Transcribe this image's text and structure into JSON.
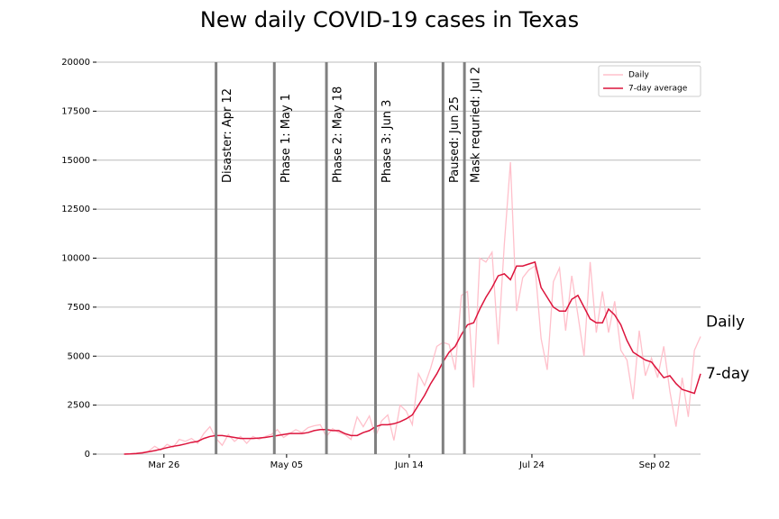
{
  "chart_data": {
    "type": "line",
    "title": "New daily COVID-19 cases in Texas",
    "x": [
      "Mar 13",
      "Mar 15",
      "Mar 17",
      "Mar 19",
      "Mar 21",
      "Mar 23",
      "Mar 25",
      "Mar 27",
      "Mar 29",
      "Mar 31",
      "Apr 02",
      "Apr 04",
      "Apr 06",
      "Apr 08",
      "Apr 10",
      "Apr 12",
      "Apr 14",
      "Apr 16",
      "Apr 18",
      "Apr 20",
      "Apr 22",
      "Apr 24",
      "Apr 26",
      "Apr 28",
      "Apr 30",
      "May 02",
      "May 04",
      "May 06",
      "May 08",
      "May 10",
      "May 12",
      "May 14",
      "May 16",
      "May 18",
      "May 20",
      "May 22",
      "May 24",
      "May 26",
      "May 28",
      "May 30",
      "Jun 01",
      "Jun 03",
      "Jun 05",
      "Jun 07",
      "Jun 09",
      "Jun 11",
      "Jun 13",
      "Jun 15",
      "Jun 17",
      "Jun 19",
      "Jun 21",
      "Jun 23",
      "Jun 25",
      "Jun 27",
      "Jun 29",
      "Jul 01",
      "Jul 03",
      "Jul 05",
      "Jul 07",
      "Jul 09",
      "Jul 11",
      "Jul 13",
      "Jul 15",
      "Jul 17",
      "Jul 19",
      "Jul 21",
      "Jul 23",
      "Jul 25",
      "Jul 27",
      "Jul 29",
      "Jul 31",
      "Aug 02",
      "Aug 04",
      "Aug 06",
      "Aug 08",
      "Aug 10",
      "Aug 12",
      "Aug 14",
      "Aug 16",
      "Aug 18",
      "Aug 20",
      "Aug 22",
      "Aug 24",
      "Aug 26",
      "Aug 28",
      "Aug 30",
      "Sep 01",
      "Sep 03",
      "Sep 05",
      "Sep 07",
      "Sep 09",
      "Sep 11",
      "Sep 13",
      "Sep 15",
      "Sep 17"
    ],
    "series": [
      {
        "name": "Daily",
        "end_label": "Daily",
        "color": "#ffc0cb",
        "values": [
          0,
          20,
          50,
          100,
          150,
          400,
          200,
          500,
          350,
          750,
          650,
          800,
          550,
          1050,
          1400,
          800,
          450,
          1000,
          650,
          900,
          550,
          900,
          750,
          900,
          1000,
          1250,
          850,
          1050,
          1250,
          1100,
          1350,
          1450,
          1500,
          900,
          1300,
          1100,
          1000,
          750,
          1900,
          1400,
          1950,
          900,
          1700,
          2000,
          700,
          2500,
          2200,
          1500,
          4100,
          3500,
          4400,
          5500,
          5700,
          5600,
          4300,
          8100,
          8300,
          3400,
          10000,
          9800,
          10300,
          5600,
          10700,
          14900,
          7300,
          9000,
          9400,
          9600,
          5900,
          4300,
          8800,
          9500,
          6300,
          9100,
          7100,
          5000,
          9800,
          6200,
          8300,
          6200,
          7800,
          5300,
          4800,
          2800,
          6300,
          4000,
          4900,
          3900,
          5500,
          3200,
          1400,
          3900,
          1900,
          5300,
          6000
        ]
      },
      {
        "name": "7-day average",
        "end_label": "7-day",
        "color": "#dc143c",
        "values": [
          0,
          10,
          30,
          60,
          120,
          180,
          250,
          330,
          400,
          450,
          520,
          600,
          650,
          800,
          900,
          950,
          950,
          900,
          850,
          800,
          800,
          800,
          820,
          850,
          900,
          950,
          1000,
          1050,
          1050,
          1050,
          1100,
          1200,
          1250,
          1250,
          1200,
          1200,
          1050,
          950,
          950,
          1100,
          1200,
          1400,
          1500,
          1500,
          1550,
          1650,
          1800,
          2000,
          2500,
          3000,
          3600,
          4100,
          4700,
          5200,
          5500,
          6100,
          6600,
          6700,
          7400,
          8000,
          8500,
          9100,
          9200,
          8900,
          9600,
          9600,
          9700,
          9800,
          8500,
          8000,
          7500,
          7300,
          7300,
          7900,
          8100,
          7500,
          6900,
          6700,
          6700,
          7400,
          7100,
          6600,
          5800,
          5200,
          5000,
          4800,
          4700,
          4300,
          3900,
          4000,
          3600,
          3300,
          3200,
          3100,
          4100
        ]
      }
    ],
    "events": [
      {
        "date": "Apr 12",
        "label": "Disaster: Apr 12"
      },
      {
        "date": "May 01",
        "label": "Phase 1: May 1"
      },
      {
        "date": "May 18",
        "label": "Phase 2: May 18"
      },
      {
        "date": "Jun 03",
        "label": "Phase 3: Jun 3"
      },
      {
        "date": "Jun 25",
        "label": "Paused: Jun 25"
      },
      {
        "date": "Jul 02",
        "label": "Mask requried: Jul 2"
      }
    ],
    "event_color": "#808080",
    "xlim": [
      "Mar 04",
      "Sep 17"
    ],
    "xticks": [
      "Mar 26",
      "May 05",
      "Jun 14",
      "Jul 24",
      "Sep 02"
    ],
    "ylim": [
      0,
      20000
    ],
    "yticks": [
      0,
      2500,
      5000,
      7500,
      10000,
      12500,
      15000,
      17500,
      20000
    ],
    "grid": true,
    "legend": "upper right"
  }
}
